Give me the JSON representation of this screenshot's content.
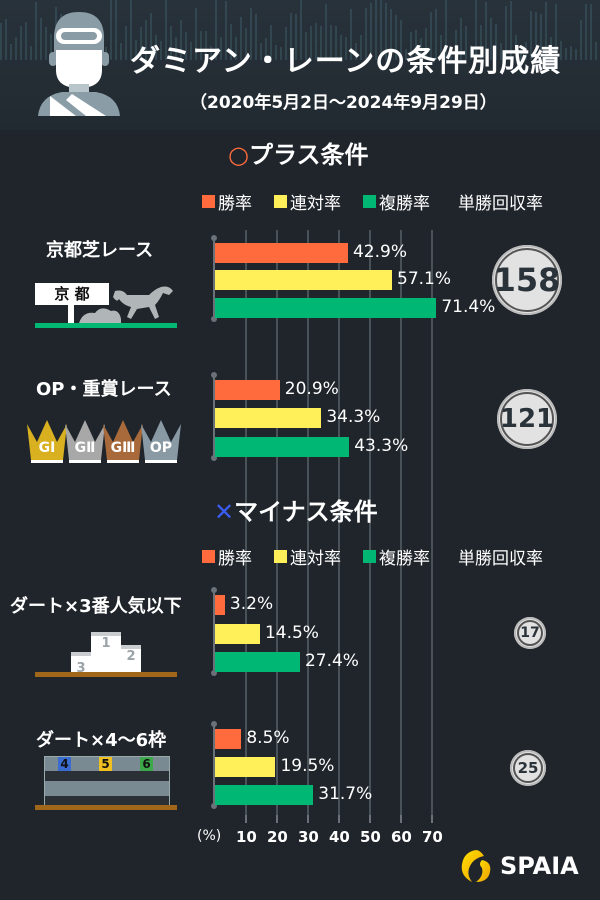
{
  "header": {
    "title": "ダミアン・レーンの条件別成績",
    "subtitle": "（2020年5月2日～2024年9月29日）"
  },
  "sections": [
    {
      "title_icon": "○",
      "title": "プラス条件",
      "legend": [
        "勝率",
        "連対率",
        "複勝率"
      ],
      "roi_header": "単勝回収率",
      "conditions": [
        {
          "label": "京都芝レース",
          "win": "42.9%",
          "top2": "57.1%",
          "top3": "71.4%",
          "roi": "158",
          "sign_text": "京 都"
        },
        {
          "label": "OP・重賞レース",
          "win": "20.9%",
          "top2": "34.3%",
          "top3": "43.3%",
          "roi": "121",
          "crowns": [
            "GⅠ",
            "GⅡ",
            "GⅢ",
            "OP"
          ]
        }
      ]
    },
    {
      "title_icon": "✕",
      "title": "マイナス条件",
      "legend": [
        "勝率",
        "連対率",
        "複勝率"
      ],
      "roi_header": "単勝回収率",
      "conditions": [
        {
          "label": "ダート×3番人気以下",
          "win": "3.2%",
          "top2": "14.5%",
          "top3": "27.4%",
          "roi": "17",
          "podium": [
            "1",
            "2",
            "3"
          ]
        },
        {
          "label": "ダート×4～6枠",
          "win": "8.5%",
          "top2": "19.5%",
          "top3": "31.7%",
          "roi": "25",
          "gates": [
            "4",
            "5",
            "6"
          ]
        }
      ]
    }
  ],
  "axis": {
    "unit": "(%)",
    "ticks": [
      "10",
      "20",
      "30",
      "40",
      "50",
      "60",
      "70"
    ]
  },
  "logo": {
    "text": "SPAIA"
  },
  "colors": {
    "win": "#ff6b3d",
    "top2": "#fff05a",
    "top3": "#00b873",
    "plus_icon": "#ff6b3d",
    "minus_icon": "#3a5cf0"
  },
  "chart_data": {
    "type": "bar",
    "orientation": "horizontal",
    "title": "ダミアン・レーンの条件別成績",
    "subtitle": "（2020年5月2日～2024年9月29日）",
    "categories": [
      "京都芝レース",
      "OP・重賞レース",
      "ダート×3番人気以下",
      "ダート×4～6枠"
    ],
    "series": [
      {
        "name": "勝率",
        "values": [
          42.9,
          20.9,
          3.2,
          8.5
        ]
      },
      {
        "name": "連対率",
        "values": [
          57.1,
          34.3,
          14.5,
          19.5
        ]
      },
      {
        "name": "複勝率",
        "values": [
          71.4,
          43.3,
          27.4,
          31.7
        ]
      }
    ],
    "annotations": {
      "単勝回収率": [
        158,
        121,
        17,
        25
      ]
    },
    "groups": {
      "プラス条件": [
        "京都芝レース",
        "OP・重賞レース"
      ],
      "マイナス条件": [
        "ダート×3番人気以下",
        "ダート×4～6枠"
      ]
    },
    "xlabel": "(%)",
    "xticks": [
      10,
      20,
      30,
      40,
      50,
      60,
      70
    ],
    "xlim": [
      0,
      75
    ],
    "grid": true,
    "legend_position": "top"
  }
}
